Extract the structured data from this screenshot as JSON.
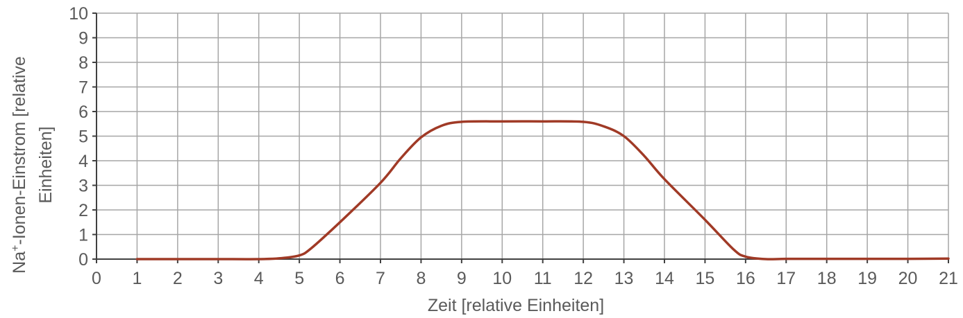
{
  "chart_data": {
    "type": "line",
    "xlabel": "Zeit [relative Einheiten]",
    "ylabel": {
      "line1_prefix": "Na",
      "line1_sup": "+",
      "line1_suffix": "-Ionen-Einstrom [relative",
      "line2": "Einheiten]"
    },
    "xlim": [
      0,
      21
    ],
    "ylim": [
      0,
      10
    ],
    "x_ticks": [
      0,
      1,
      2,
      3,
      4,
      5,
      6,
      7,
      8,
      9,
      10,
      11,
      12,
      13,
      14,
      15,
      16,
      17,
      18,
      19,
      20,
      21
    ],
    "y_ticks": [
      0,
      1,
      2,
      3,
      4,
      5,
      6,
      7,
      8,
      9,
      10
    ],
    "grid": true,
    "series": [
      {
        "color": "#a03a26",
        "points": [
          [
            1,
            0
          ],
          [
            2,
            0
          ],
          [
            3,
            0
          ],
          [
            4,
            0
          ],
          [
            4.5,
            0.03
          ],
          [
            5,
            0.15
          ],
          [
            5.3,
            0.45
          ],
          [
            6,
            1.5
          ],
          [
            7,
            3.1
          ],
          [
            7.5,
            4.1
          ],
          [
            8,
            4.95
          ],
          [
            8.5,
            5.42
          ],
          [
            9,
            5.58
          ],
          [
            10,
            5.6
          ],
          [
            11,
            5.6
          ],
          [
            12,
            5.58
          ],
          [
            12.5,
            5.4
          ],
          [
            13,
            5.0
          ],
          [
            13.5,
            4.2
          ],
          [
            14,
            3.25
          ],
          [
            15,
            1.6
          ],
          [
            15.7,
            0.4
          ],
          [
            16,
            0.1
          ],
          [
            16.5,
            0.0
          ],
          [
            17,
            0.01
          ],
          [
            18,
            0.01
          ],
          [
            19,
            0.01
          ],
          [
            20,
            0.01
          ],
          [
            21,
            0.02
          ]
        ]
      }
    ]
  }
}
